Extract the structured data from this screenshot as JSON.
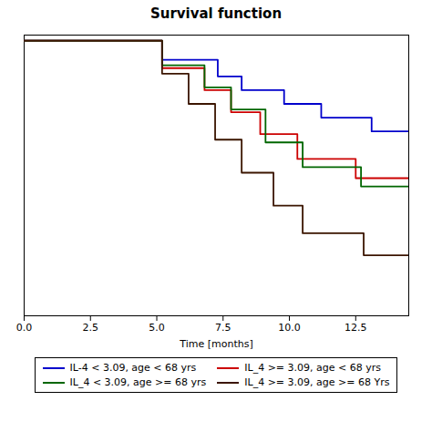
{
  "chart_data": {
    "type": "line",
    "title": "Survival function",
    "xlabel": "Time [months]",
    "xlim": [
      0.0,
      14.5
    ],
    "ylim": [
      0.0,
      1.02
    ],
    "xticks": [
      {
        "value": 0.0,
        "label": "0.0"
      },
      2.5,
      {
        "value": 5.0,
        "label": "5.0"
      },
      {
        "value": 7.5,
        "label": "7.5"
      },
      {
        "value": 10.0,
        "label": "10.0"
      },
      12.5
    ],
    "tick_labels": "x",
    "legend": "bottom",
    "series": [
      {
        "name": "IL-4 < 3.09, age < 68 yrs",
        "color": "#0000CC",
        "x": [
          0.0,
          5.2,
          5.2,
          7.3,
          7.3,
          8.2,
          8.2,
          9.8,
          9.8,
          11.2,
          11.2,
          13.1,
          13.1,
          14.5
        ],
        "values": [
          1.0,
          1.0,
          0.93,
          0.93,
          0.87,
          0.87,
          0.82,
          0.82,
          0.77,
          0.77,
          0.72,
          0.72,
          0.67,
          0.67
        ]
      },
      {
        "name": "IL_4 >= 3.09, age < 68 yrs",
        "color": "#CC0000",
        "x": [
          0.0,
          5.2,
          5.2,
          6.8,
          6.8,
          7.8,
          7.8,
          8.9,
          8.9,
          10.3,
          10.3,
          12.5,
          12.5,
          14.5
        ],
        "values": [
          1.0,
          1.0,
          0.9,
          0.9,
          0.82,
          0.82,
          0.74,
          0.74,
          0.66,
          0.66,
          0.57,
          0.57,
          0.5,
          0.5
        ]
      },
      {
        "name": "IL_4 < 3.09, age >= 68 yrs",
        "color": "#006600",
        "x": [
          0.0,
          5.2,
          5.2,
          6.8,
          6.8,
          7.8,
          7.8,
          9.1,
          9.1,
          10.5,
          10.5,
          12.7,
          12.7,
          14.5
        ],
        "values": [
          1.0,
          1.0,
          0.91,
          0.91,
          0.83,
          0.83,
          0.75,
          0.75,
          0.63,
          0.63,
          0.54,
          0.54,
          0.47,
          0.47
        ]
      },
      {
        "name": "IL_4 >= 3.09, age >= 68 Yrs",
        "color": "#3B1500",
        "x": [
          0.0,
          5.2,
          5.2,
          6.2,
          6.2,
          7.2,
          7.2,
          8.2,
          8.2,
          9.4,
          9.4,
          10.5,
          10.5,
          12.8,
          12.8,
          14.5
        ],
        "values": [
          1.0,
          1.0,
          0.88,
          0.88,
          0.77,
          0.77,
          0.64,
          0.64,
          0.52,
          0.52,
          0.4,
          0.4,
          0.3,
          0.3,
          0.22,
          0.22
        ]
      }
    ]
  }
}
